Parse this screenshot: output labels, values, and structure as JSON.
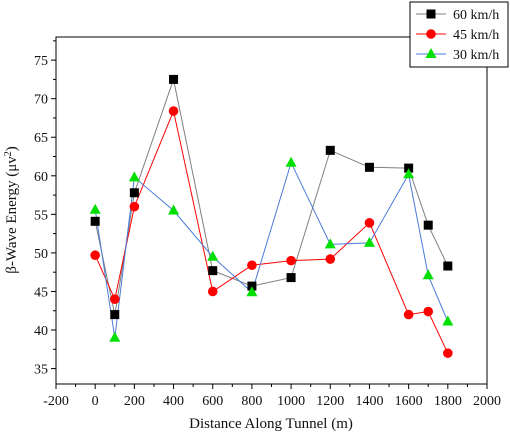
{
  "chart_data": {
    "type": "line",
    "xlabel": "Distance Along Tunnel (m)",
    "ylabel_prefix": "β-Wave Energy (μv",
    "ylabel_sup": "2",
    "ylabel_suffix": ")",
    "xlim": [
      -200,
      2000
    ],
    "ylim": [
      33,
      78
    ],
    "x_ticks": [
      -200,
      0,
      200,
      400,
      600,
      800,
      1000,
      1200,
      1400,
      1600,
      1800,
      2000
    ],
    "x_tick_labels": [
      "-200",
      "0",
      "200",
      "400",
      "600",
      "800",
      "1000",
      "1200",
      "1400",
      "1600",
      "1800",
      "2000"
    ],
    "y_ticks": [
      35,
      40,
      45,
      50,
      55,
      60,
      65,
      70,
      75
    ],
    "y_tick_labels": [
      "35",
      "40",
      "45",
      "50",
      "55",
      "60",
      "65",
      "70",
      "75"
    ],
    "grid": false,
    "legend_position": "top-right",
    "series": [
      {
        "name": "60 km/h",
        "marker": "square",
        "line_color": "#7f7f7f",
        "marker_color": "#000000",
        "points": [
          {
            "x": 0,
            "y": 54.1
          },
          {
            "x": 100,
            "y": 42.0
          },
          {
            "x": 200,
            "y": 57.8
          },
          {
            "x": 400,
            "y": 72.5
          },
          {
            "x": 600,
            "y": 47.7
          },
          {
            "x": 800,
            "y": 45.7
          },
          {
            "x": 1000,
            "y": 46.8
          },
          {
            "x": 1200,
            "y": 63.3
          },
          {
            "x": 1400,
            "y": 61.1
          },
          {
            "x": 1600,
            "y": 61.0
          },
          {
            "x": 1700,
            "y": 53.6
          },
          {
            "x": 1800,
            "y": 48.3
          }
        ]
      },
      {
        "name": "45 km/h",
        "marker": "circle",
        "line_color": "#ff0000",
        "marker_color": "#ff0000",
        "points": [
          {
            "x": 0,
            "y": 49.7
          },
          {
            "x": 100,
            "y": 44.0
          },
          {
            "x": 200,
            "y": 56.0
          },
          {
            "x": 400,
            "y": 68.4
          },
          {
            "x": 600,
            "y": 45.0
          },
          {
            "x": 800,
            "y": 48.4
          },
          {
            "x": 1000,
            "y": 49.0
          },
          {
            "x": 1200,
            "y": 49.2
          },
          {
            "x": 1400,
            "y": 53.9
          },
          {
            "x": 1600,
            "y": 42.0
          },
          {
            "x": 1700,
            "y": 42.4
          },
          {
            "x": 1800,
            "y": 37.0
          }
        ]
      },
      {
        "name": "30 km/h",
        "marker": "triangle",
        "line_color": "#4a7bd8",
        "marker_color": "#00e000",
        "points": [
          {
            "x": 0,
            "y": 55.6
          },
          {
            "x": 100,
            "y": 39.0
          },
          {
            "x": 200,
            "y": 59.8
          },
          {
            "x": 400,
            "y": 55.5
          },
          {
            "x": 600,
            "y": 49.5
          },
          {
            "x": 800,
            "y": 44.9
          },
          {
            "x": 1000,
            "y": 61.7
          },
          {
            "x": 1200,
            "y": 51.1
          },
          {
            "x": 1400,
            "y": 51.3
          },
          {
            "x": 1600,
            "y": 60.2
          },
          {
            "x": 1700,
            "y": 47.1
          },
          {
            "x": 1800,
            "y": 41.1
          }
        ]
      }
    ]
  }
}
